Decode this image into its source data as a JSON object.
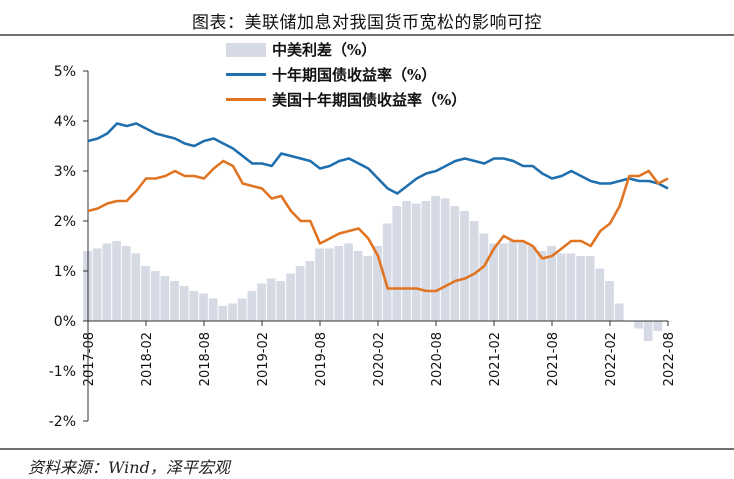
{
  "title": "图表：美联储加息对我国货币宽松的影响可控",
  "source": "资料来源：Wind，泽平宏观",
  "colors": {
    "spread": "#d6dae4",
    "cn10y": "#1f6fae",
    "us10y": "#e07422",
    "axis": "#333333",
    "rule": "#6f6f6f"
  },
  "chart_data": {
    "type": "line",
    "y_axis": {
      "min": -2,
      "max": 5,
      "ticks": [
        "5%",
        "4%",
        "3%",
        "2%",
        "1%",
        "0%",
        "-1%",
        "-2%"
      ],
      "tick_values": [
        5,
        4,
        3,
        2,
        1,
        0,
        -1,
        -2
      ]
    },
    "x_axis": {
      "tick_labels": [
        "2017-08",
        "2018-02",
        "2018-08",
        "2019-02",
        "2019-08",
        "2020-02",
        "2020-08",
        "2021-02",
        "2021-08",
        "2022-02",
        "2022-08"
      ],
      "start": "2017-08",
      "end": "2022-08"
    },
    "grid": false,
    "legend_position": "top-center",
    "series": [
      {
        "name": "中美利差（%）",
        "type": "area",
        "x": [
          "2017-08",
          "2017-09",
          "2017-10",
          "2017-11",
          "2017-12",
          "2018-01",
          "2018-02",
          "2018-03",
          "2018-04",
          "2018-05",
          "2018-06",
          "2018-07",
          "2018-08",
          "2018-09",
          "2018-10",
          "2018-11",
          "2018-12",
          "2019-01",
          "2019-02",
          "2019-03",
          "2019-04",
          "2019-05",
          "2019-06",
          "2019-07",
          "2019-08",
          "2019-09",
          "2019-10",
          "2019-11",
          "2019-12",
          "2020-01",
          "2020-02",
          "2020-03",
          "2020-04",
          "2020-05",
          "2020-06",
          "2020-07",
          "2020-08",
          "2020-09",
          "2020-10",
          "2020-11",
          "2020-12",
          "2021-01",
          "2021-02",
          "2021-03",
          "2021-04",
          "2021-05",
          "2021-06",
          "2021-07",
          "2021-08",
          "2021-09",
          "2021-10",
          "2021-11",
          "2021-12",
          "2022-01",
          "2022-02",
          "2022-03",
          "2022-04",
          "2022-05",
          "2022-06",
          "2022-07",
          "2022-08"
        ],
        "values": [
          1.4,
          1.45,
          1.55,
          1.6,
          1.5,
          1.35,
          1.1,
          1.0,
          0.9,
          0.8,
          0.7,
          0.6,
          0.55,
          0.45,
          0.3,
          0.35,
          0.45,
          0.6,
          0.75,
          0.85,
          0.8,
          0.95,
          1.1,
          1.2,
          1.45,
          1.45,
          1.5,
          1.55,
          1.4,
          1.3,
          1.5,
          1.95,
          2.3,
          2.4,
          2.35,
          2.4,
          2.5,
          2.45,
          2.3,
          2.2,
          2.0,
          1.75,
          1.55,
          1.55,
          1.6,
          1.6,
          1.5,
          1.4,
          1.5,
          1.35,
          1.35,
          1.3,
          1.3,
          1.05,
          0.8,
          0.35,
          0.0,
          -0.15,
          -0.4,
          -0.2,
          0.0
        ]
      },
      {
        "name": "十年期国债收益率（%）",
        "type": "line",
        "x": [
          "2017-08",
          "2017-09",
          "2017-10",
          "2017-11",
          "2017-12",
          "2018-01",
          "2018-02",
          "2018-03",
          "2018-04",
          "2018-05",
          "2018-06",
          "2018-07",
          "2018-08",
          "2018-09",
          "2018-10",
          "2018-11",
          "2018-12",
          "2019-01",
          "2019-02",
          "2019-03",
          "2019-04",
          "2019-05",
          "2019-06",
          "2019-07",
          "2019-08",
          "2019-09",
          "2019-10",
          "2019-11",
          "2019-12",
          "2020-01",
          "2020-02",
          "2020-03",
          "2020-04",
          "2020-05",
          "2020-06",
          "2020-07",
          "2020-08",
          "2020-09",
          "2020-10",
          "2020-11",
          "2020-12",
          "2021-01",
          "2021-02",
          "2021-03",
          "2021-04",
          "2021-05",
          "2021-06",
          "2021-07",
          "2021-08",
          "2021-09",
          "2021-10",
          "2021-11",
          "2021-12",
          "2022-01",
          "2022-02",
          "2022-03",
          "2022-04",
          "2022-05",
          "2022-06",
          "2022-07",
          "2022-08"
        ],
        "values": [
          3.6,
          3.65,
          3.75,
          3.95,
          3.9,
          3.95,
          3.85,
          3.75,
          3.7,
          3.65,
          3.55,
          3.5,
          3.6,
          3.65,
          3.55,
          3.45,
          3.3,
          3.15,
          3.15,
          3.1,
          3.35,
          3.3,
          3.25,
          3.2,
          3.05,
          3.1,
          3.2,
          3.25,
          3.15,
          3.05,
          2.85,
          2.65,
          2.55,
          2.7,
          2.85,
          2.95,
          3.0,
          3.1,
          3.2,
          3.25,
          3.2,
          3.15,
          3.25,
          3.25,
          3.2,
          3.1,
          3.1,
          2.95,
          2.85,
          2.9,
          3.0,
          2.9,
          2.8,
          2.75,
          2.75,
          2.8,
          2.85,
          2.8,
          2.8,
          2.75,
          2.65
        ]
      },
      {
        "name": "美国十年期国债收益率（%）",
        "type": "line",
        "x": [
          "2017-08",
          "2017-09",
          "2017-10",
          "2017-11",
          "2017-12",
          "2018-01",
          "2018-02",
          "2018-03",
          "2018-04",
          "2018-05",
          "2018-06",
          "2018-07",
          "2018-08",
          "2018-09",
          "2018-10",
          "2018-11",
          "2018-12",
          "2019-01",
          "2019-02",
          "2019-03",
          "2019-04",
          "2019-05",
          "2019-06",
          "2019-07",
          "2019-08",
          "2019-09",
          "2019-10",
          "2019-11",
          "2019-12",
          "2020-01",
          "2020-02",
          "2020-03",
          "2020-04",
          "2020-05",
          "2020-06",
          "2020-07",
          "2020-08",
          "2020-09",
          "2020-10",
          "2020-11",
          "2020-12",
          "2021-01",
          "2021-02",
          "2021-03",
          "2021-04",
          "2021-05",
          "2021-06",
          "2021-07",
          "2021-08",
          "2021-09",
          "2021-10",
          "2021-11",
          "2021-12",
          "2022-01",
          "2022-02",
          "2022-03",
          "2022-04",
          "2022-05",
          "2022-06",
          "2022-07",
          "2022-08"
        ],
        "values": [
          2.2,
          2.25,
          2.35,
          2.4,
          2.4,
          2.6,
          2.85,
          2.85,
          2.9,
          3.0,
          2.9,
          2.9,
          2.85,
          3.05,
          3.2,
          3.1,
          2.75,
          2.7,
          2.65,
          2.45,
          2.5,
          2.2,
          2.0,
          2.0,
          1.55,
          1.65,
          1.75,
          1.8,
          1.85,
          1.65,
          1.3,
          0.65,
          0.65,
          0.65,
          0.65,
          0.6,
          0.6,
          0.7,
          0.8,
          0.85,
          0.95,
          1.1,
          1.45,
          1.7,
          1.6,
          1.6,
          1.5,
          1.25,
          1.3,
          1.45,
          1.6,
          1.6,
          1.5,
          1.8,
          1.95,
          2.3,
          2.9,
          2.9,
          3.0,
          2.75,
          2.85
        ]
      }
    ]
  }
}
